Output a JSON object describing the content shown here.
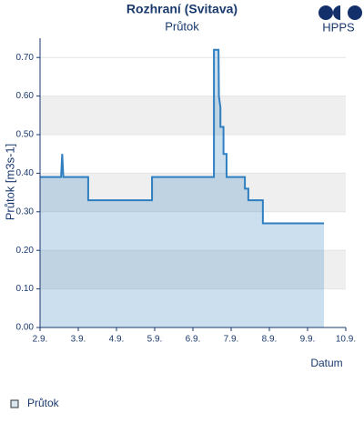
{
  "chart_data": {
    "type": "area",
    "title": "Rozhraní (Svitava)",
    "subtitle": "Průtok",
    "logo": "HPPS",
    "x_label": "Datum",
    "y_label": "Průtok [m3s-1]",
    "series": [
      {
        "name": "Průtok",
        "color": "#2f7fc1",
        "x": [
          2.0,
          2.55,
          2.58,
          2.61,
          3.26,
          3.26,
          4.93,
          4.93,
          6.55,
          6.55,
          6.67,
          6.68,
          6.72,
          6.72,
          6.8,
          6.8,
          6.88,
          6.88,
          7.36,
          7.36,
          7.45,
          7.45,
          7.83,
          7.83,
          9.43
        ],
        "values": [
          0.39,
          0.39,
          0.45,
          0.39,
          0.39,
          0.33,
          0.33,
          0.39,
          0.39,
          0.72,
          0.72,
          0.6,
          0.57,
          0.52,
          0.52,
          0.45,
          0.45,
          0.39,
          0.39,
          0.36,
          0.36,
          0.33,
          0.33,
          0.27,
          0.27
        ]
      }
    ],
    "xlim": [
      2,
      10
    ],
    "ylim": [
      0,
      0.75
    ],
    "xticks": [
      {
        "value": 2,
        "label": "2.9."
      },
      {
        "value": 3,
        "label": "3.9."
      },
      {
        "value": 4,
        "label": "4.9."
      },
      {
        "value": 5,
        "label": "5.9."
      },
      {
        "value": 6,
        "label": "6.9."
      },
      {
        "value": 7,
        "label": "7.9."
      },
      {
        "value": 8,
        "label": "8.9."
      },
      {
        "value": 9,
        "label": "9.9."
      },
      {
        "value": 10,
        "label": "10.9."
      }
    ],
    "yticks": [
      {
        "value": 0,
        "label": "0.00"
      },
      {
        "value": 0.1,
        "label": "0.10"
      },
      {
        "value": 0.2,
        "label": "0.20"
      },
      {
        "value": 0.3,
        "label": "0.30"
      },
      {
        "value": 0.4,
        "label": "0.40"
      },
      {
        "value": 0.5,
        "label": "0.50"
      },
      {
        "value": 0.6,
        "label": "0.60"
      },
      {
        "value": 0.7,
        "label": "0.70"
      }
    ],
    "grid": true,
    "legend": "bottom-left"
  }
}
